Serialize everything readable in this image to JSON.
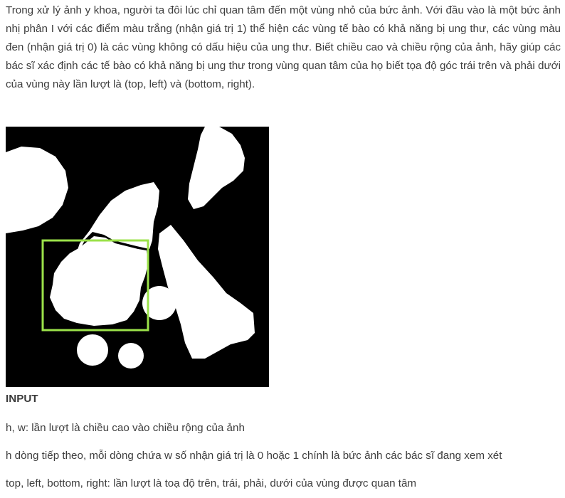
{
  "intro_text": "Trong xử lý ảnh y khoa, người ta đôi lúc chỉ quan tâm đến một vùng nhỏ của bức ảnh. Với đầu vào là một bức ảnh nhị phân I với các điểm màu trắng (nhận giá trị 1) thể hiện các vùng tế bào có khả năng bị ung thư, các vùng màu đen (nhận giá trị 0) là các vùng không có dấu hiệu của ung thư. Biết chiều cao và chiều rộng của ảnh, hãy giúp các bác sĩ xác định các tế bào có khả năng bị ung thư trong vùng quan tâm của họ biết tọa độ góc trái trên và phải dưới của vùng này lần lượt là (top, left) và (bottom, right).",
  "figure": {
    "background_color": "#000000",
    "cell_color": "#ffffff",
    "roi_color": "#9be24a"
  },
  "input_heading": "INPUT",
  "input_lines": [
    "h, w: lần lượt là chiều cao vào chiều rộng của ảnh",
    "h dòng tiếp theo, mỗi dòng chứa w số nhận giá trị là 0 hoặc 1 chính là bức ảnh các bác sĩ đang xem xét",
    "top, left, bottom, right: lần lượt là toạ độ trên, trái, phải, dưới của vùng được quan tâm"
  ]
}
